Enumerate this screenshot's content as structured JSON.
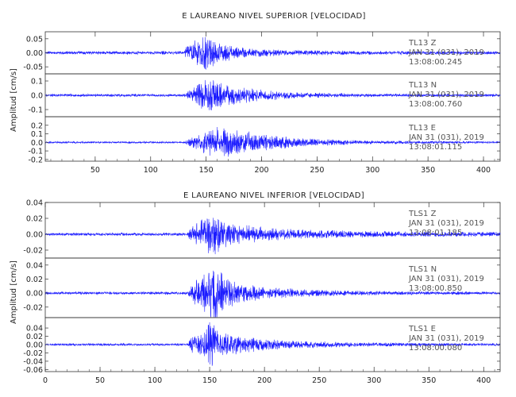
{
  "chart_data": [
    {
      "type": "line",
      "title": "E LAUREANO NIVEL SUPERIOR [VELOCIDAD]",
      "ylabel": "Amplitud [cm/s]",
      "xlim": [
        5,
        415
      ],
      "x_ticks": [
        "50",
        "100",
        "150",
        "200",
        "250",
        "300",
        "350",
        "400"
      ],
      "color": "#1a1aff",
      "traces": [
        {
          "station": "TL13",
          "component": "Z",
          "date": "JAN 31 (031), 2019",
          "time": "13:08:00.245",
          "ylim": [
            -0.075,
            0.075
          ],
          "y_ticks": [
            "0.05",
            "0.00",
            "-0.05"
          ],
          "noise_amp": 0.006,
          "envelope": [
            [
              130,
              0.006
            ],
            [
              133,
              0.03
            ],
            [
              140,
              0.045
            ],
            [
              150,
              0.07
            ],
            [
              160,
              0.04
            ],
            [
              180,
              0.02
            ],
            [
              220,
              0.01
            ],
            [
              300,
              0.007
            ],
            [
              415,
              0.006
            ]
          ]
        },
        {
          "station": "TL13",
          "component": "N",
          "date": "JAN 31 (031), 2019",
          "time": "13:08:00.760",
          "ylim": [
            -0.15,
            0.15
          ],
          "y_ticks": [
            "0.1",
            "0.0",
            "-0.1"
          ],
          "noise_amp": 0.01,
          "envelope": [
            [
              130,
              0.01
            ],
            [
              135,
              0.04
            ],
            [
              150,
              0.12
            ],
            [
              160,
              0.1
            ],
            [
              175,
              0.07
            ],
            [
              200,
              0.04
            ],
            [
              240,
              0.02
            ],
            [
              300,
              0.012
            ],
            [
              415,
              0.01
            ]
          ]
        },
        {
          "station": "TL13",
          "component": "E",
          "date": "JAN 31 (031), 2019",
          "time": "13:08:01.115",
          "ylim": [
            -0.22,
            0.3
          ],
          "y_ticks": [
            "0.2",
            "0.1",
            "0.0",
            "-0.1",
            "-0.2"
          ],
          "noise_amp": 0.012,
          "envelope": [
            [
              130,
              0.012
            ],
            [
              135,
              0.05
            ],
            [
              150,
              0.15
            ],
            [
              160,
              0.2
            ],
            [
              175,
              0.16
            ],
            [
              200,
              0.1
            ],
            [
              240,
              0.05
            ],
            [
              300,
              0.02
            ],
            [
              415,
              0.012
            ]
          ]
        }
      ]
    },
    {
      "type": "line",
      "title": "E LAUREANO NIVEL INFERIOR [VELOCIDAD]",
      "ylabel": "Amplitud [cm/s]",
      "xlim": [
        0,
        415
      ],
      "x_ticks": [
        "0",
        "50",
        "100",
        "150",
        "200",
        "250",
        "300",
        "350",
        "400"
      ],
      "color": "#1a1aff",
      "traces": [
        {
          "station": "TLS1",
          "component": "Z",
          "date": "JAN 31 (031), 2019",
          "time": "13:08:01.185",
          "ylim": [
            -0.03,
            0.04
          ],
          "y_ticks": [
            "0.04",
            "0.02",
            "0.00",
            "-0.02"
          ],
          "noise_amp": 0.002,
          "envelope": [
            [
              130,
              0.002
            ],
            [
              133,
              0.012
            ],
            [
              145,
              0.02
            ],
            [
              150,
              0.04
            ],
            [
              160,
              0.02
            ],
            [
              180,
              0.012
            ],
            [
              220,
              0.007
            ],
            [
              300,
              0.004
            ],
            [
              415,
              0.003
            ]
          ]
        },
        {
          "station": "TLS1",
          "component": "N",
          "date": "JAN 31 (031), 2019",
          "time": "13:08:00.850",
          "ylim": [
            -0.035,
            0.05
          ],
          "y_ticks": [
            "0.04",
            "0.02",
            "0.00",
            "-0.02"
          ],
          "noise_amp": 0.002,
          "envelope": [
            [
              130,
              0.002
            ],
            [
              135,
              0.015
            ],
            [
              148,
              0.035
            ],
            [
              155,
              0.045
            ],
            [
              165,
              0.025
            ],
            [
              185,
              0.012
            ],
            [
              230,
              0.006
            ],
            [
              300,
              0.003
            ],
            [
              415,
              0.002
            ]
          ]
        },
        {
          "station": "TLS1",
          "component": "E",
          "date": "JAN 31 (031), 2019",
          "time": "13:08:00.080",
          "ylim": [
            -0.065,
            0.065
          ],
          "y_ticks": [
            "0.04",
            "0.02",
            "0.00",
            "-0.02",
            "-0.04",
            "-0.06"
          ],
          "noise_amp": 0.003,
          "envelope": [
            [
              130,
              0.003
            ],
            [
              133,
              0.02
            ],
            [
              145,
              0.03
            ],
            [
              150,
              0.06
            ],
            [
              160,
              0.035
            ],
            [
              180,
              0.02
            ],
            [
              220,
              0.01
            ],
            [
              300,
              0.005
            ],
            [
              415,
              0.003
            ]
          ]
        }
      ]
    }
  ]
}
